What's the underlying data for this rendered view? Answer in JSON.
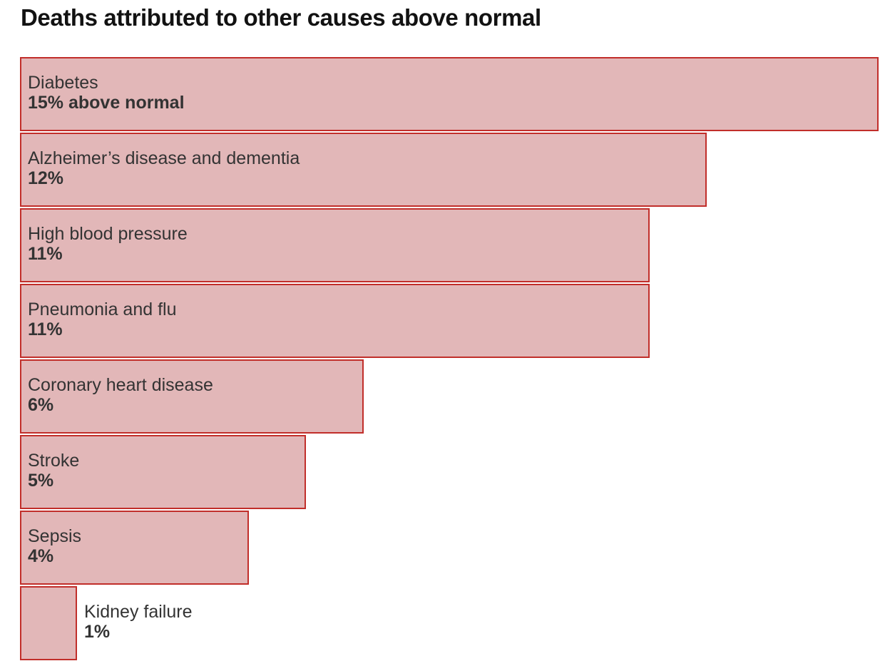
{
  "chart_data": {
    "type": "bar",
    "orientation": "horizontal",
    "title": "Deaths attributed to other causes above normal",
    "categories": [
      "Diabetes",
      "Alzheimer’s disease and dementia",
      "High blood pressure",
      "Pneumonia and flu",
      "Coronary heart disease",
      "Stroke",
      "Sepsis",
      "Kidney failure"
    ],
    "values": [
      15,
      12,
      11,
      11,
      6,
      5,
      4,
      1
    ],
    "value_labels": [
      "15% above normal",
      "12%",
      "11%",
      "11%",
      "6%",
      "5%",
      "4%",
      "1%"
    ],
    "unit": "% above normal",
    "xlim": [
      0,
      15
    ],
    "grid": false,
    "colors": {
      "bar_fill": "#e2b7b8",
      "bar_stroke": "#c12e2a"
    }
  }
}
